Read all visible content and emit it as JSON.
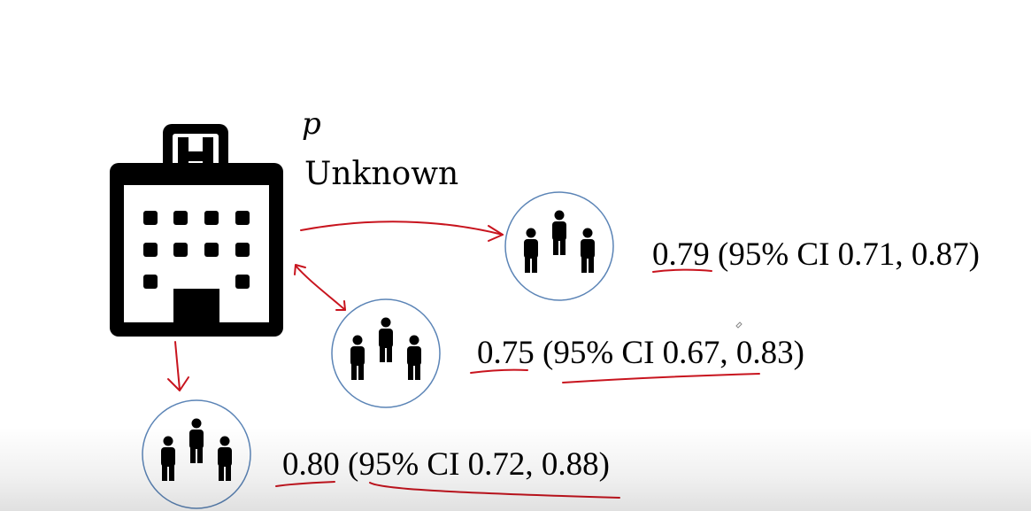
{
  "hospital": {
    "icon": "hospital-icon",
    "parameter_symbol": "p",
    "parameter_status": "Unknown"
  },
  "samples": [
    {
      "icon": "group-icon",
      "estimate": "0.79",
      "ci_text": "(95% CI 0.71, 0.87)"
    },
    {
      "icon": "group-icon",
      "estimate": "0.75",
      "ci_text": "(95% CI 0.67, 0.83)"
    },
    {
      "icon": "group-icon",
      "estimate": "0.80",
      "ci_text": "(95% CI 0.72, 0.88)"
    }
  ],
  "colors": {
    "annotation_red": "#c8141e",
    "circle_blue": "#5b84b6",
    "icon_black": "#000000"
  }
}
